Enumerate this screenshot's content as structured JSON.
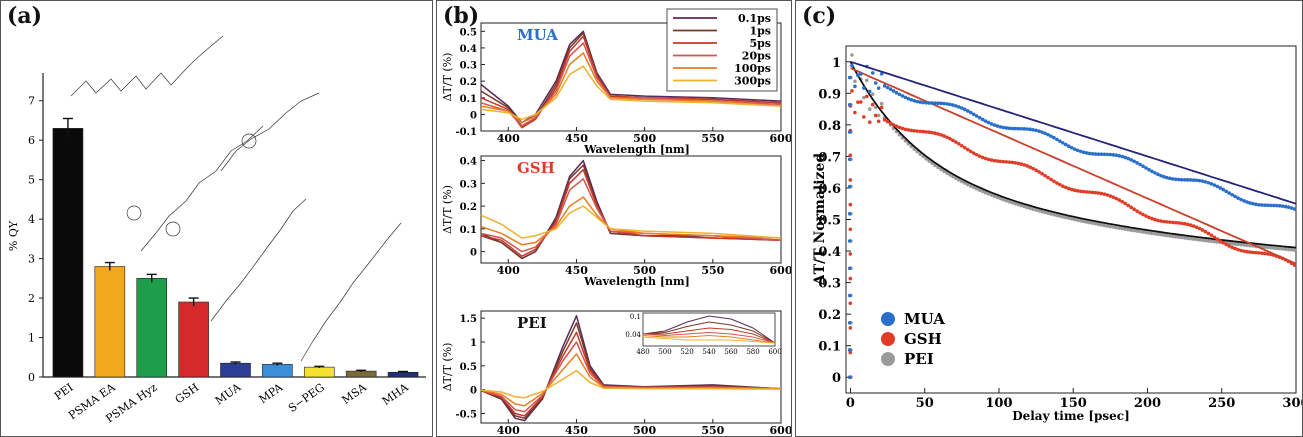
{
  "panel_letters": {
    "a": "(a)",
    "b": "(b)",
    "c": "(c)"
  },
  "colors": {
    "mua": "#2a6fc9",
    "gsh": "#e03c28",
    "pei": "#9a9a9a",
    "fit_mua": "#23237a",
    "fit_gsh": "#c8402a",
    "fit_pei": "#111111",
    "t01": "#5a2a5a",
    "t1": "#7a3a2a",
    "t5": "#c0392b",
    "t20": "#d9534f",
    "t100": "#e67e22",
    "t300": "#f0b030"
  },
  "chart_data": [
    {
      "type": "bar",
      "panel": "a",
      "categories": [
        "PEI",
        "PSMA EA",
        "PSMA Hyz",
        "GSH",
        "MUA",
        "MPA",
        "S−PEG",
        "MSA",
        "MHA"
      ],
      "values": [
        6.3,
        2.8,
        2.5,
        1.9,
        0.35,
        0.32,
        0.25,
        0.15,
        0.12
      ],
      "errors": [
        0.25,
        0.1,
        0.1,
        0.1,
        0.03,
        0.03,
        0.02,
        0.02,
        0.02
      ],
      "bar_colors": [
        "#0a0a0a",
        "#f2a81d",
        "#1e9e4a",
        "#d42a2a",
        "#2c3e94",
        "#3b8fd9",
        "#f5e130",
        "#7a6a3a",
        "#1f2f7a"
      ],
      "ylabel": "% QY",
      "ylim": [
        0,
        7.5
      ],
      "yticks": [
        "0",
        "1",
        "2",
        "3",
        "4",
        "5",
        "6",
        "7"
      ]
    },
    {
      "type": "line",
      "panel": "b",
      "legend": [
        "0.1ps",
        "1ps",
        "5ps",
        "20ps",
        "100ps",
        "300ps"
      ],
      "subplots": [
        {
          "label": "MUA",
          "ylabel": "ΔT/T (%)",
          "xlabel": "Wavelength [nm]",
          "xlim": [
            380,
            600
          ],
          "ylim": [
            -0.1,
            0.55
          ],
          "yticks": [
            "-0.1",
            "0",
            "0.1",
            "0.2",
            "0.3",
            "0.4",
            "0.5"
          ],
          "xticks": [
            "400",
            "450",
            "500",
            "550",
            "600"
          ],
          "x": [
            380,
            400,
            410,
            420,
            435,
            445,
            455,
            465,
            475,
            500,
            550,
            600
          ],
          "series": [
            {
              "values": [
                0.18,
                0.05,
                -0.05,
                0.0,
                0.2,
                0.42,
                0.5,
                0.25,
                0.12,
                0.11,
                0.1,
                0.08
              ]
            },
            {
              "values": [
                0.14,
                0.04,
                -0.07,
                -0.02,
                0.18,
                0.4,
                0.49,
                0.24,
                0.11,
                0.1,
                0.09,
                0.07
              ]
            },
            {
              "values": [
                0.1,
                0.03,
                -0.08,
                -0.03,
                0.16,
                0.38,
                0.47,
                0.23,
                0.11,
                0.1,
                0.09,
                0.07
              ]
            },
            {
              "values": [
                0.07,
                0.02,
                -0.07,
                -0.02,
                0.14,
                0.35,
                0.43,
                0.22,
                0.1,
                0.1,
                0.08,
                0.06
              ]
            },
            {
              "values": [
                0.05,
                0.02,
                -0.05,
                -0.01,
                0.12,
                0.3,
                0.37,
                0.2,
                0.1,
                0.09,
                0.08,
                0.05
              ]
            },
            {
              "values": [
                0.03,
                0.01,
                -0.03,
                0.0,
                0.1,
                0.24,
                0.29,
                0.17,
                0.09,
                0.08,
                0.07,
                0.05
              ]
            }
          ]
        },
        {
          "label": "GSH",
          "ylabel": "ΔT/T (%)",
          "xlabel": "Wavelength [nm]",
          "xlim": [
            380,
            600
          ],
          "ylim": [
            -0.05,
            0.42
          ],
          "yticks": [
            "0",
            "0.1",
            "0.2",
            "0.3",
            "0.4"
          ],
          "xticks": [
            "400",
            "450",
            "500",
            "550",
            "600"
          ],
          "x": [
            380,
            395,
            410,
            420,
            435,
            445,
            455,
            465,
            475,
            500,
            550,
            600
          ],
          "series": [
            {
              "values": [
                0.08,
                0.04,
                -0.03,
                0.0,
                0.15,
                0.33,
                0.4,
                0.22,
                0.08,
                0.07,
                0.07,
                0.05
              ]
            },
            {
              "values": [
                0.07,
                0.04,
                -0.03,
                0.0,
                0.14,
                0.32,
                0.38,
                0.21,
                0.08,
                0.07,
                0.06,
                0.05
              ]
            },
            {
              "values": [
                0.07,
                0.05,
                -0.02,
                0.01,
                0.13,
                0.3,
                0.36,
                0.2,
                0.09,
                0.07,
                0.06,
                0.05
              ]
            },
            {
              "values": [
                0.08,
                0.06,
                0.0,
                0.02,
                0.12,
                0.27,
                0.32,
                0.19,
                0.09,
                0.08,
                0.07,
                0.05
              ]
            },
            {
              "values": [
                0.11,
                0.08,
                0.03,
                0.04,
                0.11,
                0.2,
                0.24,
                0.16,
                0.1,
                0.08,
                0.07,
                0.06
              ]
            },
            {
              "values": [
                0.16,
                0.12,
                0.06,
                0.07,
                0.1,
                0.17,
                0.2,
                0.15,
                0.1,
                0.09,
                0.08,
                0.06
              ]
            }
          ]
        },
        {
          "label": "PEI",
          "ylabel": "ΔT/T (%)",
          "xlabel": "Wavelength [nm]",
          "xlim": [
            380,
            600
          ],
          "ylim": [
            -0.7,
            1.65
          ],
          "yticks": [
            "-0.5",
            "0",
            "0.5",
            "1",
            "1.5"
          ],
          "xticks": [
            "400",
            "450",
            "500",
            "550",
            "600"
          ],
          "x": [
            380,
            395,
            405,
            412,
            425,
            440,
            450,
            460,
            470,
            500,
            550,
            600
          ],
          "series": [
            {
              "values": [
                -0.02,
                -0.2,
                -0.6,
                -0.65,
                -0.2,
                0.9,
                1.55,
                0.5,
                0.1,
                0.06,
                0.1,
                0.02
              ]
            },
            {
              "values": [
                -0.02,
                -0.18,
                -0.55,
                -0.6,
                -0.18,
                0.8,
                1.4,
                0.45,
                0.08,
                0.05,
                0.08,
                0.02
              ]
            },
            {
              "values": [
                -0.02,
                -0.16,
                -0.5,
                -0.55,
                -0.15,
                0.7,
                1.2,
                0.4,
                0.07,
                0.05,
                0.06,
                0.02
              ]
            },
            {
              "values": [
                -0.01,
                -0.14,
                -0.42,
                -0.46,
                -0.12,
                0.6,
                1.0,
                0.34,
                0.06,
                0.04,
                0.05,
                0.02
              ]
            },
            {
              "values": [
                -0.01,
                -0.1,
                -0.3,
                -0.34,
                -0.08,
                0.42,
                0.75,
                0.26,
                0.05,
                0.03,
                0.04,
                0.02
              ]
            },
            {
              "values": [
                -0.01,
                -0.05,
                -0.15,
                -0.17,
                -0.04,
                0.22,
                0.4,
                0.15,
                0.03,
                0.02,
                0.02,
                0.01
              ]
            }
          ],
          "inset": {
            "xticks": [
              "480",
              "500",
              "520",
              "540",
              "560",
              "580",
              "600"
            ],
            "yticks": [
              "0.1",
              "0.04"
            ],
            "xlim": [
              480,
              600
            ],
            "ylim": [
              0,
              0.11
            ],
            "x": [
              480,
              500,
              520,
              540,
              560,
              580,
              600
            ],
            "series": [
              {
                "values": [
                  0.04,
                  0.05,
                  0.08,
                  0.1,
                  0.09,
                  0.06,
                  0.01
                ]
              },
              {
                "values": [
                  0.04,
                  0.045,
                  0.065,
                  0.08,
                  0.07,
                  0.05,
                  0.01
                ]
              },
              {
                "values": [
                  0.04,
                  0.04,
                  0.05,
                  0.06,
                  0.055,
                  0.04,
                  0.01
                ]
              },
              {
                "values": [
                  0.04,
                  0.035,
                  0.04,
                  0.045,
                  0.04,
                  0.03,
                  0.01
                ]
              },
              {
                "values": [
                  0.035,
                  0.03,
                  0.03,
                  0.035,
                  0.03,
                  0.02,
                  0.01
                ]
              },
              {
                "values": [
                  0.03,
                  0.025,
                  0.02,
                  0.02,
                  0.02,
                  0.015,
                  0.01
                ]
              }
            ]
          }
        }
      ]
    },
    {
      "type": "scatter",
      "panel": "c",
      "xlabel": "Delay time [psec]",
      "ylabel": "ΔT/T Normalized",
      "xlim": [
        -3,
        300
      ],
      "ylim": [
        -0.05,
        1.05
      ],
      "xticks": [
        "0",
        "50",
        "100",
        "150",
        "200",
        "250",
        "300"
      ],
      "yticks": [
        "0",
        "0.1",
        "0.2",
        "0.3",
        "0.4",
        "0.5",
        "0.6",
        "0.7",
        "0.8",
        "0.9",
        "1"
      ],
      "legend": [
        "MUA",
        "GSH",
        "PEI"
      ],
      "series": [
        {
          "name": "MUA",
          "fit_start": 1.0,
          "fit_end": 0.55,
          "fit_shape": "linear",
          "data_start": 0.95,
          "data_end": 0.52
        },
        {
          "name": "GSH",
          "fit_start": 0.98,
          "fit_end": 0.36,
          "fit_shape": "linear",
          "data_start": 0.86,
          "data_end": 0.35
        },
        {
          "name": "PEI",
          "fit_start": 1.0,
          "fit_end": 0.3,
          "fit_shape": "exp",
          "data_start": 0.95,
          "data_end": 0.29
        }
      ]
    }
  ]
}
